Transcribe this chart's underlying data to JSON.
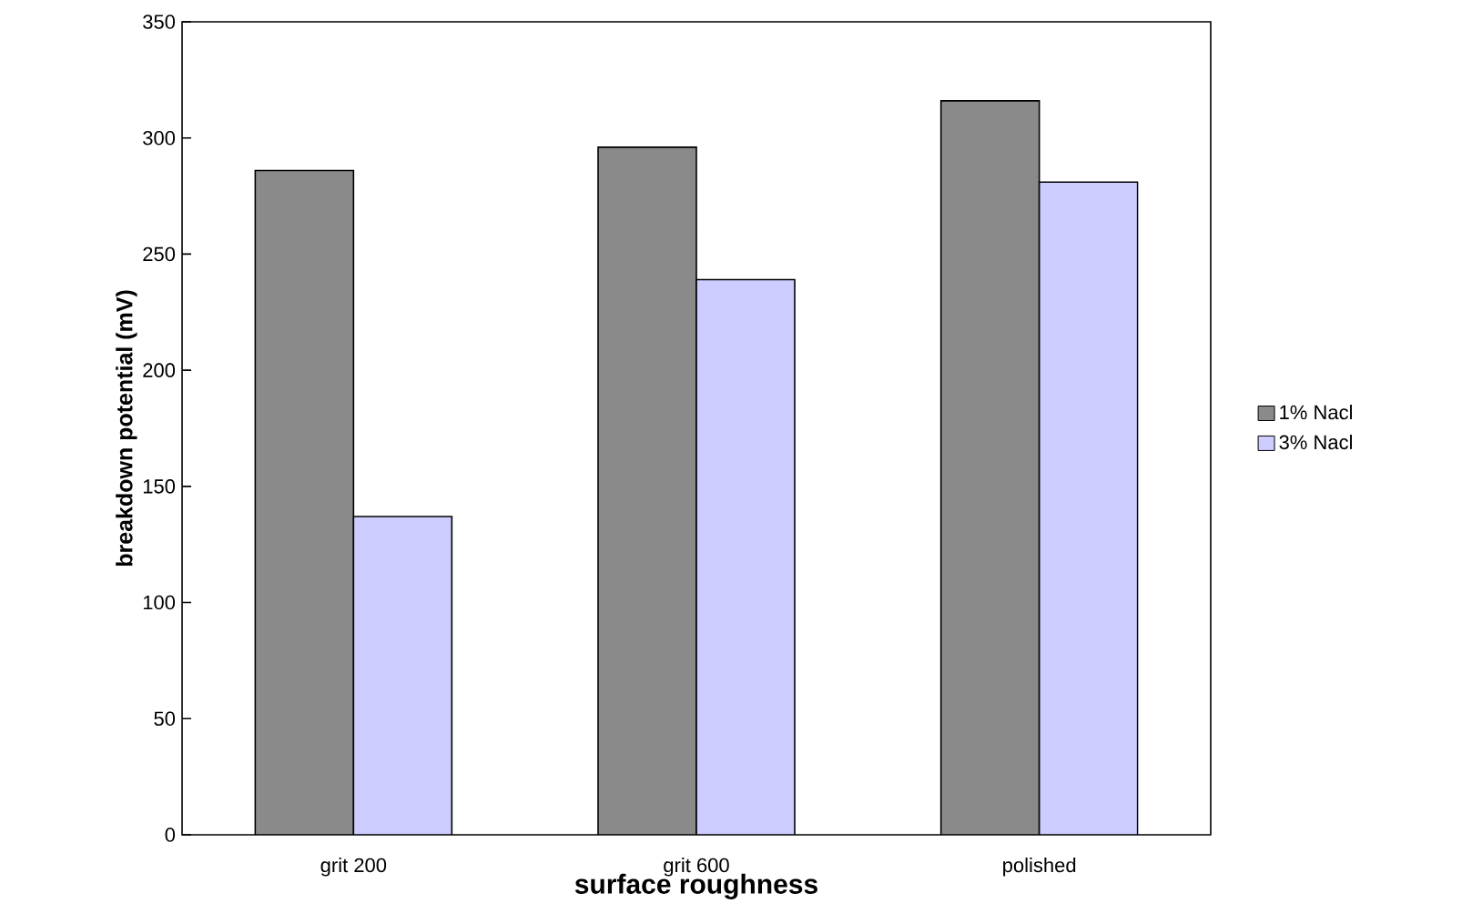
{
  "chart_data": {
    "type": "bar",
    "xlabel": "surface roughness",
    "ylabel": "breakdown potential (mV)",
    "categories": [
      "grit 200",
      "grit 600",
      "polished"
    ],
    "series": [
      {
        "name": "1% Nacl",
        "color": "#8a8a8a",
        "values": [
          286,
          296,
          316
        ]
      },
      {
        "name": "3% Nacl",
        "color": "#ccccff",
        "values": [
          137,
          239,
          281
        ]
      }
    ],
    "ylim": [
      0,
      350
    ],
    "yticks": [
      0,
      50,
      100,
      150,
      200,
      250,
      300,
      350
    ],
    "legend": "right"
  }
}
